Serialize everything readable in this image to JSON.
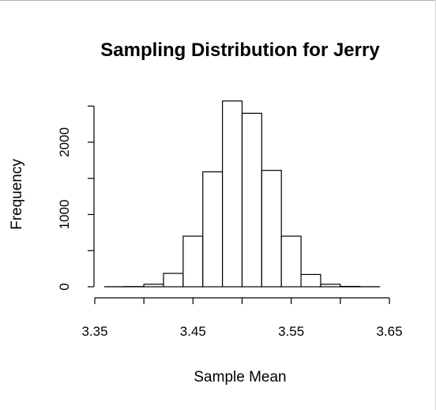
{
  "chart_data": {
    "type": "histogram",
    "title": "Sampling Distribution for Jerry",
    "xlabel": "Sample Mean",
    "ylabel": "Frequency",
    "xlim": [
      3.35,
      3.65
    ],
    "ylim": [
      0,
      2500
    ],
    "x_ticks": [
      3.35,
      3.45,
      3.55,
      3.65
    ],
    "x_tick_labels": [
      "3.35",
      "3.45",
      "3.55",
      "3.65"
    ],
    "y_ticks": [
      0,
      1000,
      2000
    ],
    "y_tick_labels": [
      "0",
      "1000",
      "2000"
    ],
    "bin_edges": [
      3.36,
      3.38,
      3.4,
      3.42,
      3.44,
      3.46,
      3.48,
      3.5,
      3.52,
      3.54,
      3.56,
      3.58,
      3.6,
      3.62,
      3.64
    ],
    "values": [
      1,
      3,
      35,
      185,
      700,
      1590,
      2570,
      2400,
      1610,
      700,
      170,
      35,
      5,
      1
    ],
    "grid": false,
    "bar_fill": "#ffffff",
    "bar_stroke": "#000000"
  }
}
